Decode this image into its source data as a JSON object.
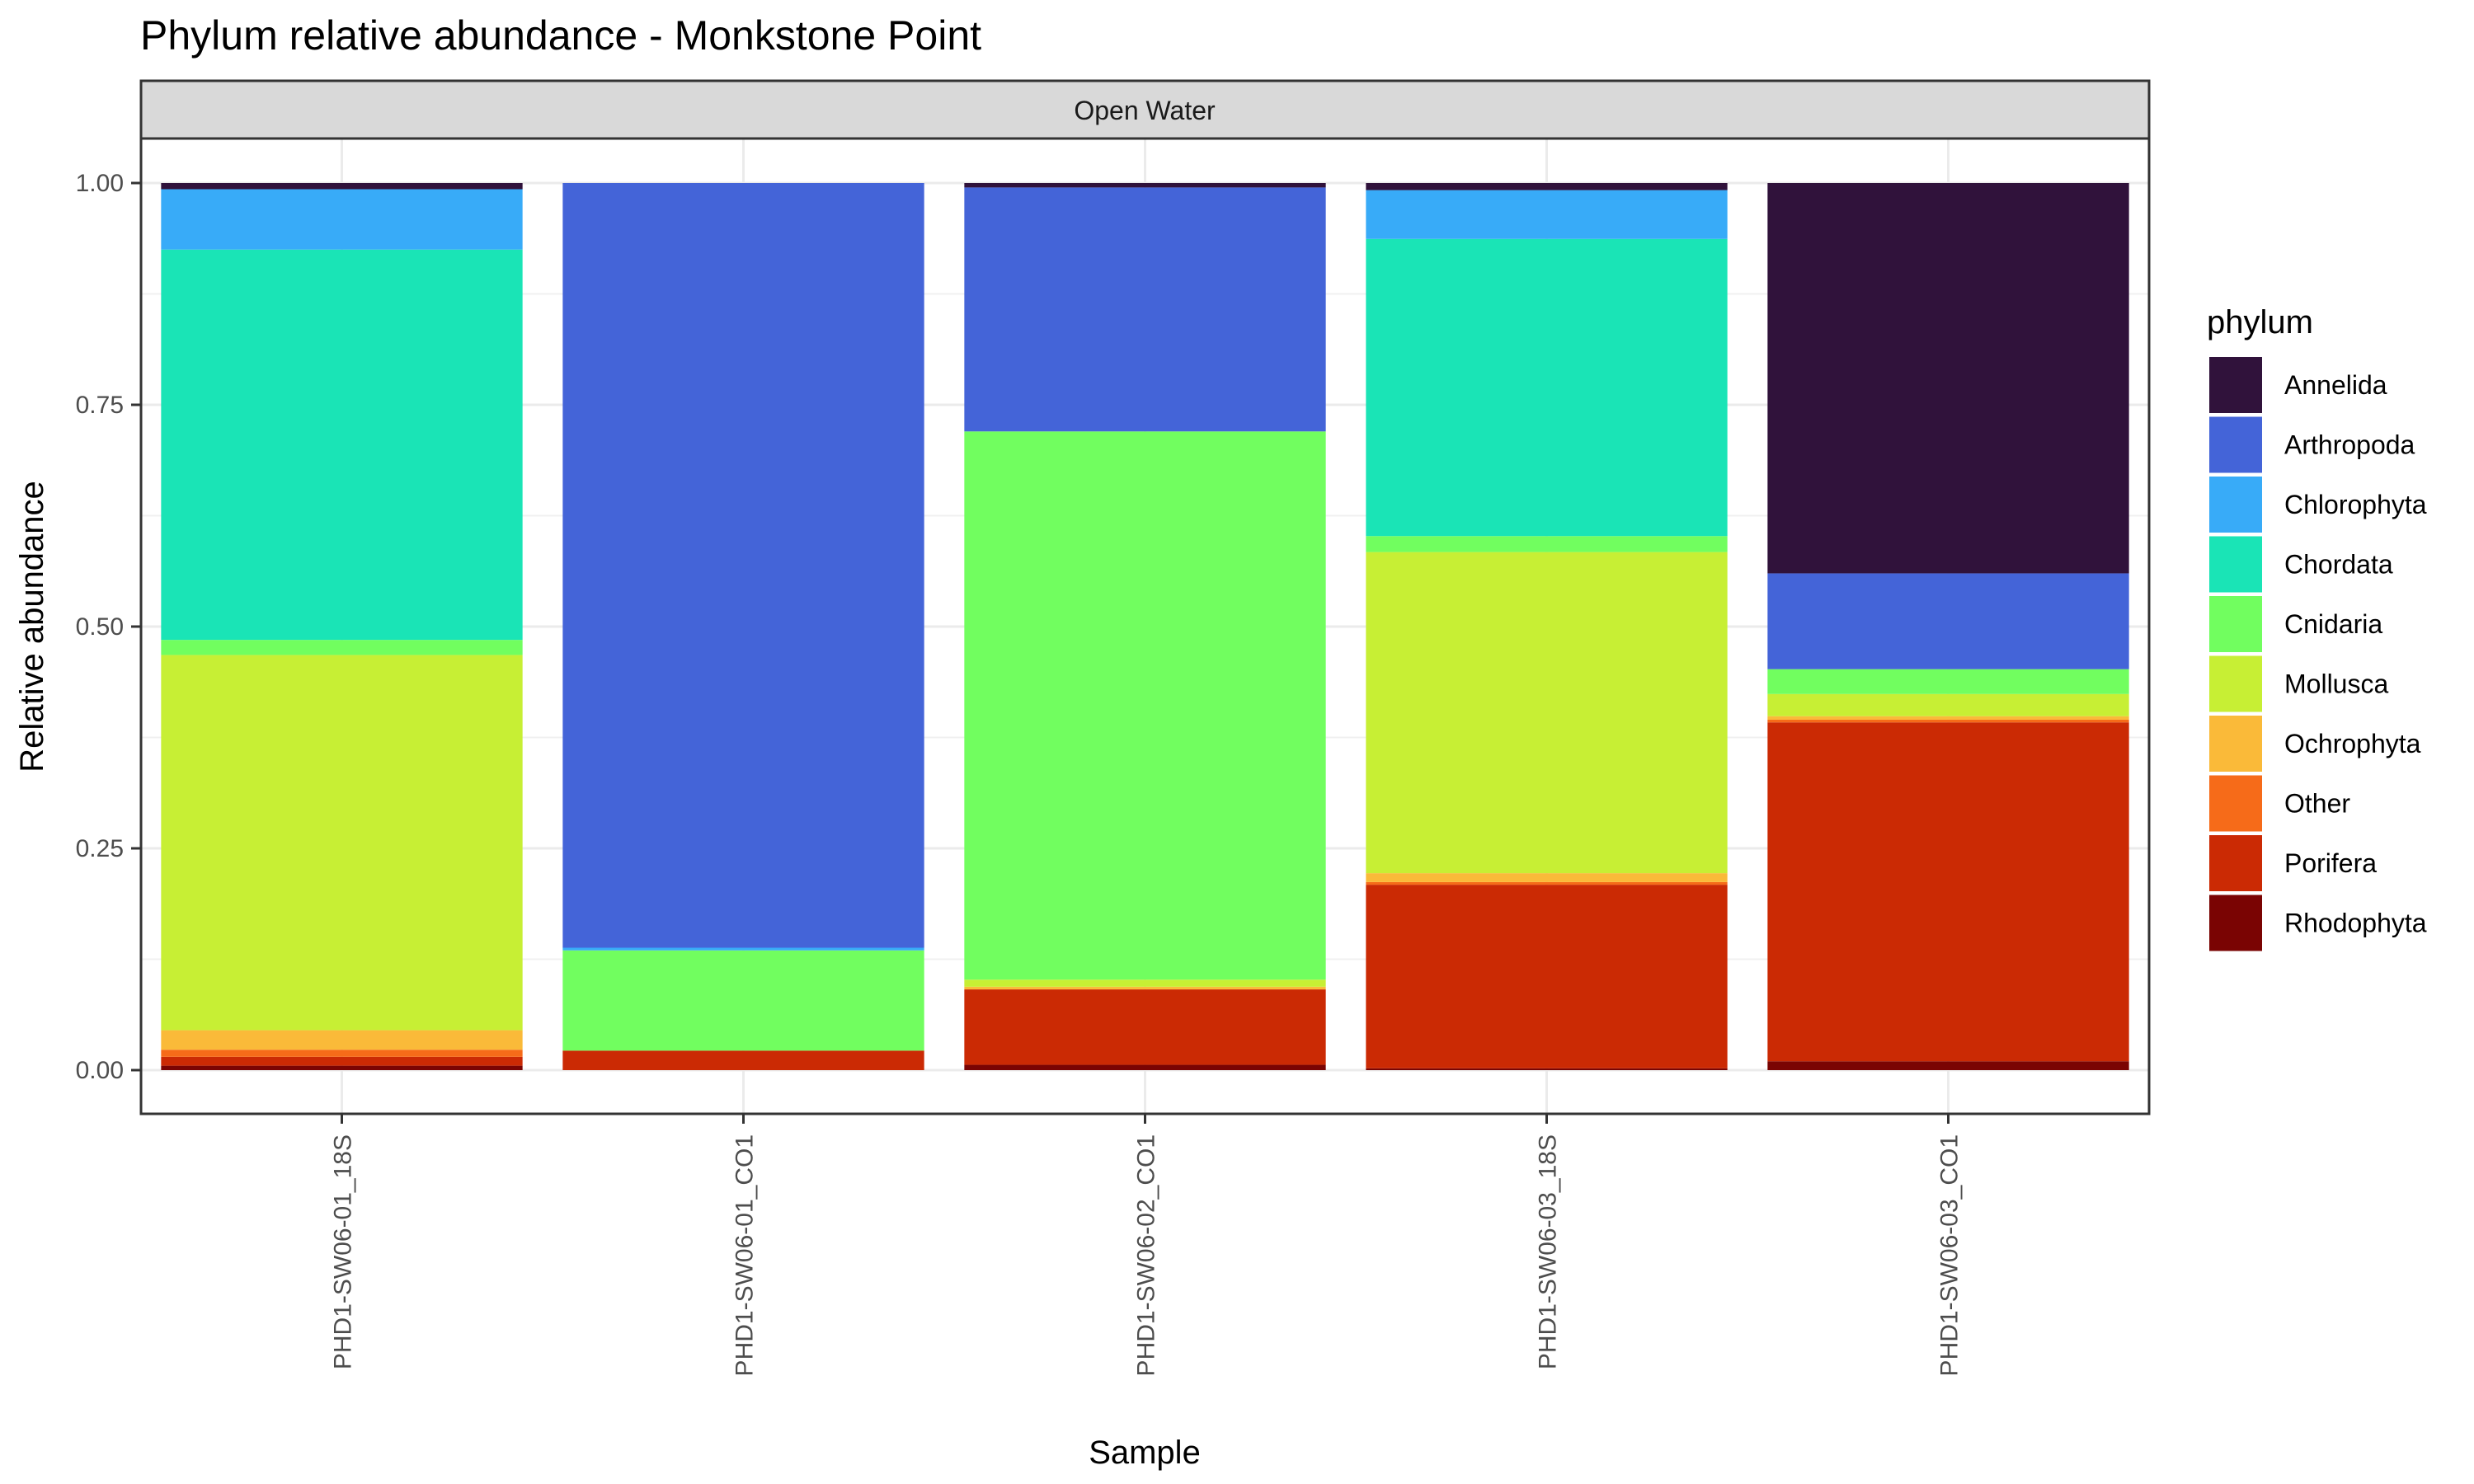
{
  "chart_data": {
    "type": "bar",
    "stacked": true,
    "title": "Phylum relative abundance - Monkstone Point",
    "facet": "Open Water",
    "xlabel": "Sample",
    "ylabel": "Relative abundance",
    "ylim": [
      0,
      1
    ],
    "yticks": [
      "0.00",
      "0.25",
      "0.50",
      "0.75",
      "1.00"
    ],
    "grid": true,
    "legend_title": "phylum",
    "legend_position": "right",
    "categories": [
      "PHD1-SW06-01_18S",
      "PHD1-SW06-01_CO1",
      "PHD1-SW06-02_CO1",
      "PHD1-SW06-03_18S",
      "PHD1-SW06-03_CO1"
    ],
    "series": [
      {
        "name": "Annelida",
        "color": "#30123B",
        "values": [
          0.007,
          0.0,
          0.005,
          0.008,
          0.44
        ]
      },
      {
        "name": "Arthropoda",
        "color": "#4464D8",
        "values": [
          0.0,
          0.862,
          0.275,
          0.0,
          0.108
        ]
      },
      {
        "name": "Chlorophyta",
        "color": "#38ABF8",
        "values": [
          0.068,
          0.003,
          0.0,
          0.055,
          0.0
        ]
      },
      {
        "name": "Chordata",
        "color": "#1AE4B6",
        "values": [
          0.44,
          0.0,
          0.0,
          0.335,
          0.0
        ]
      },
      {
        "name": "Cnidaria",
        "color": "#71FE5F",
        "values": [
          0.017,
          0.113,
          0.618,
          0.018,
          0.028
        ]
      },
      {
        "name": "Mollusca",
        "color": "#C7EF34",
        "values": [
          0.423,
          0.0,
          0.008,
          0.362,
          0.025
        ]
      },
      {
        "name": "Ochrophyta",
        "color": "#FABA39",
        "values": [
          0.022,
          0.0,
          0.003,
          0.01,
          0.004
        ]
      },
      {
        "name": "Other",
        "color": "#F66B19",
        "values": [
          0.008,
          0.0,
          0.0,
          0.003,
          0.003
        ]
      },
      {
        "name": "Porifera",
        "color": "#CB2A04",
        "values": [
          0.01,
          0.022,
          0.085,
          0.207,
          0.382
        ]
      },
      {
        "name": "Rhodophyta",
        "color": "#7A0403",
        "values": [
          0.005,
          0.0,
          0.006,
          0.002,
          0.01
        ]
      }
    ]
  }
}
